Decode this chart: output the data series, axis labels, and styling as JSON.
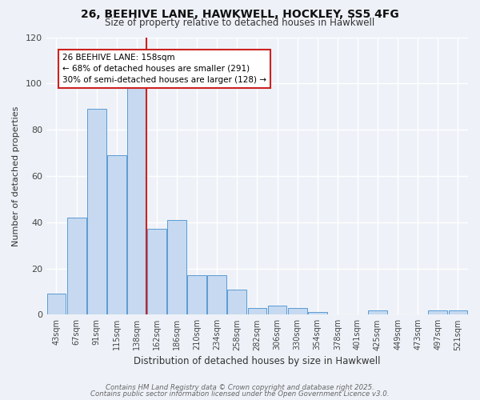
{
  "title1": "26, BEEHIVE LANE, HAWKWELL, HOCKLEY, SS5 4FG",
  "title2": "Size of property relative to detached houses in Hawkwell",
  "xlabel": "Distribution of detached houses by size in Hawkwell",
  "ylabel": "Number of detached properties",
  "categories": [
    "43sqm",
    "67sqm",
    "91sqm",
    "115sqm",
    "138sqm",
    "162sqm",
    "186sqm",
    "210sqm",
    "234sqm",
    "258sqm",
    "282sqm",
    "306sqm",
    "330sqm",
    "354sqm",
    "378sqm",
    "401sqm",
    "425sqm",
    "449sqm",
    "473sqm",
    "497sqm",
    "521sqm"
  ],
  "values": [
    9,
    42,
    89,
    69,
    101,
    37,
    41,
    17,
    17,
    11,
    3,
    4,
    3,
    1,
    0,
    0,
    2,
    0,
    0,
    2,
    2
  ],
  "bar_color": "#c6d9f0",
  "bar_edge_color": "#5b9bd5",
  "vline_x_index": 5,
  "vline_color": "#cc2222",
  "annotation_text": "26 BEEHIVE LANE: 158sqm\n← 68% of detached houses are smaller (291)\n30% of semi-detached houses are larger (128) →",
  "annotation_box_color": "white",
  "annotation_box_edge_color": "#cc2222",
  "footer1": "Contains HM Land Registry data © Crown copyright and database right 2025.",
  "footer2": "Contains public sector information licensed under the Open Government Licence v3.0.",
  "ylim": [
    0,
    120
  ],
  "yticks": [
    0,
    20,
    40,
    60,
    80,
    100,
    120
  ],
  "background_color": "#eef2f8",
  "grid_color": "white"
}
